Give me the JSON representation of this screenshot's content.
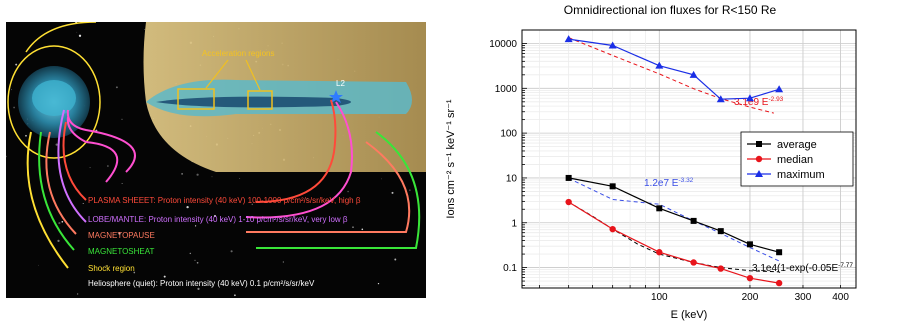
{
  "illustration": {
    "acceleration_label": "Acceleration regions",
    "l2_label": "L2",
    "legend": [
      {
        "label": "PLASMA SHEEET: Proton intensity (40 keV) 100-1000 p/cm²/s/sr/keV, high β",
        "color": "#ff4a3a"
      },
      {
        "label": "LOBE/MANTLE: Proton intensity (40 keV) 1-10 p/cm²/s/sr/keV, very low β",
        "color": "#d070ff"
      },
      {
        "label": "MAGNETOPAUSE",
        "color": "#ff7a60"
      },
      {
        "label": "MAGNETOSHEAT",
        "color": "#39e639"
      },
      {
        "label": "Shock region",
        "color": "#ffe033"
      },
      {
        "label": "Heliosphere (quiet): Proton intensity (40 keV) 0.1 p/cm²/s/sr/keV",
        "color": "#ffffff"
      }
    ]
  },
  "chart_data": {
    "type": "line",
    "title": "Omnidirectional ion fluxes for R<150 Re",
    "xlabel": "E (keV)",
    "ylabel": "Ions cm⁻² s⁻¹ keV⁻¹ sr⁻¹",
    "x_scale": "log",
    "y_scale": "log",
    "xlim": [
      35,
      450
    ],
    "ylim": [
      0.035,
      20000
    ],
    "x_ticks": [
      100,
      200,
      300,
      400
    ],
    "y_ticks": [
      0.1,
      1,
      10,
      100,
      1000,
      10000
    ],
    "y_tick_labels": [
      "0.1",
      "1",
      "10",
      "100",
      "1000",
      "10000"
    ],
    "grid": true,
    "legend_position": "right-middle",
    "series": [
      {
        "name": "average",
        "color": "#000000",
        "marker": "square",
        "x": [
          50,
          70,
          100,
          130,
          160,
          200,
          250
        ],
        "y": [
          10,
          6.5,
          2.1,
          1.1,
          0.65,
          0.33,
          0.22
        ]
      },
      {
        "name": "median",
        "color": "#e8141b",
        "marker": "circle",
        "x": [
          50,
          70,
          100,
          130,
          160,
          200,
          250
        ],
        "y": [
          2.9,
          0.72,
          0.22,
          0.13,
          0.095,
          0.058,
          0.045
        ]
      },
      {
        "name": "maximum",
        "color": "#1a2ee6",
        "marker": "triangle",
        "x": [
          50,
          70,
          100,
          130,
          160,
          200,
          250
        ],
        "y": [
          12500,
          9000,
          3200,
          2000,
          570,
          600,
          950
        ]
      }
    ],
    "fits": [
      {
        "label": "3.1e9 E",
        "exponent": "-2.93",
        "color": "#e8141b",
        "x": [
          50,
          70,
          100,
          130,
          160,
          200,
          240
        ],
        "y": [
          13500,
          5400,
          2100,
          980,
          590,
          380,
          280
        ]
      },
      {
        "label": "1.2e7 E",
        "exponent": "-3.32",
        "color": "#3a4ee6",
        "x": [
          50,
          70,
          100,
          130,
          160,
          200,
          250
        ],
        "y": [
          9.8,
          3.3,
          2.6,
          1.1,
          0.58,
          0.28,
          0.14
        ]
      },
      {
        "label": "3.1e4(1-exp(-0.05E",
        "exponent": "-7.77",
        "color": "#000000",
        "x": [
          50,
          60,
          70,
          85,
          100,
          130,
          160,
          200,
          250
        ],
        "y": [
          2.9,
          1.4,
          0.72,
          0.33,
          0.2,
          0.13,
          0.1,
          0.085,
          0.08
        ]
      }
    ]
  }
}
